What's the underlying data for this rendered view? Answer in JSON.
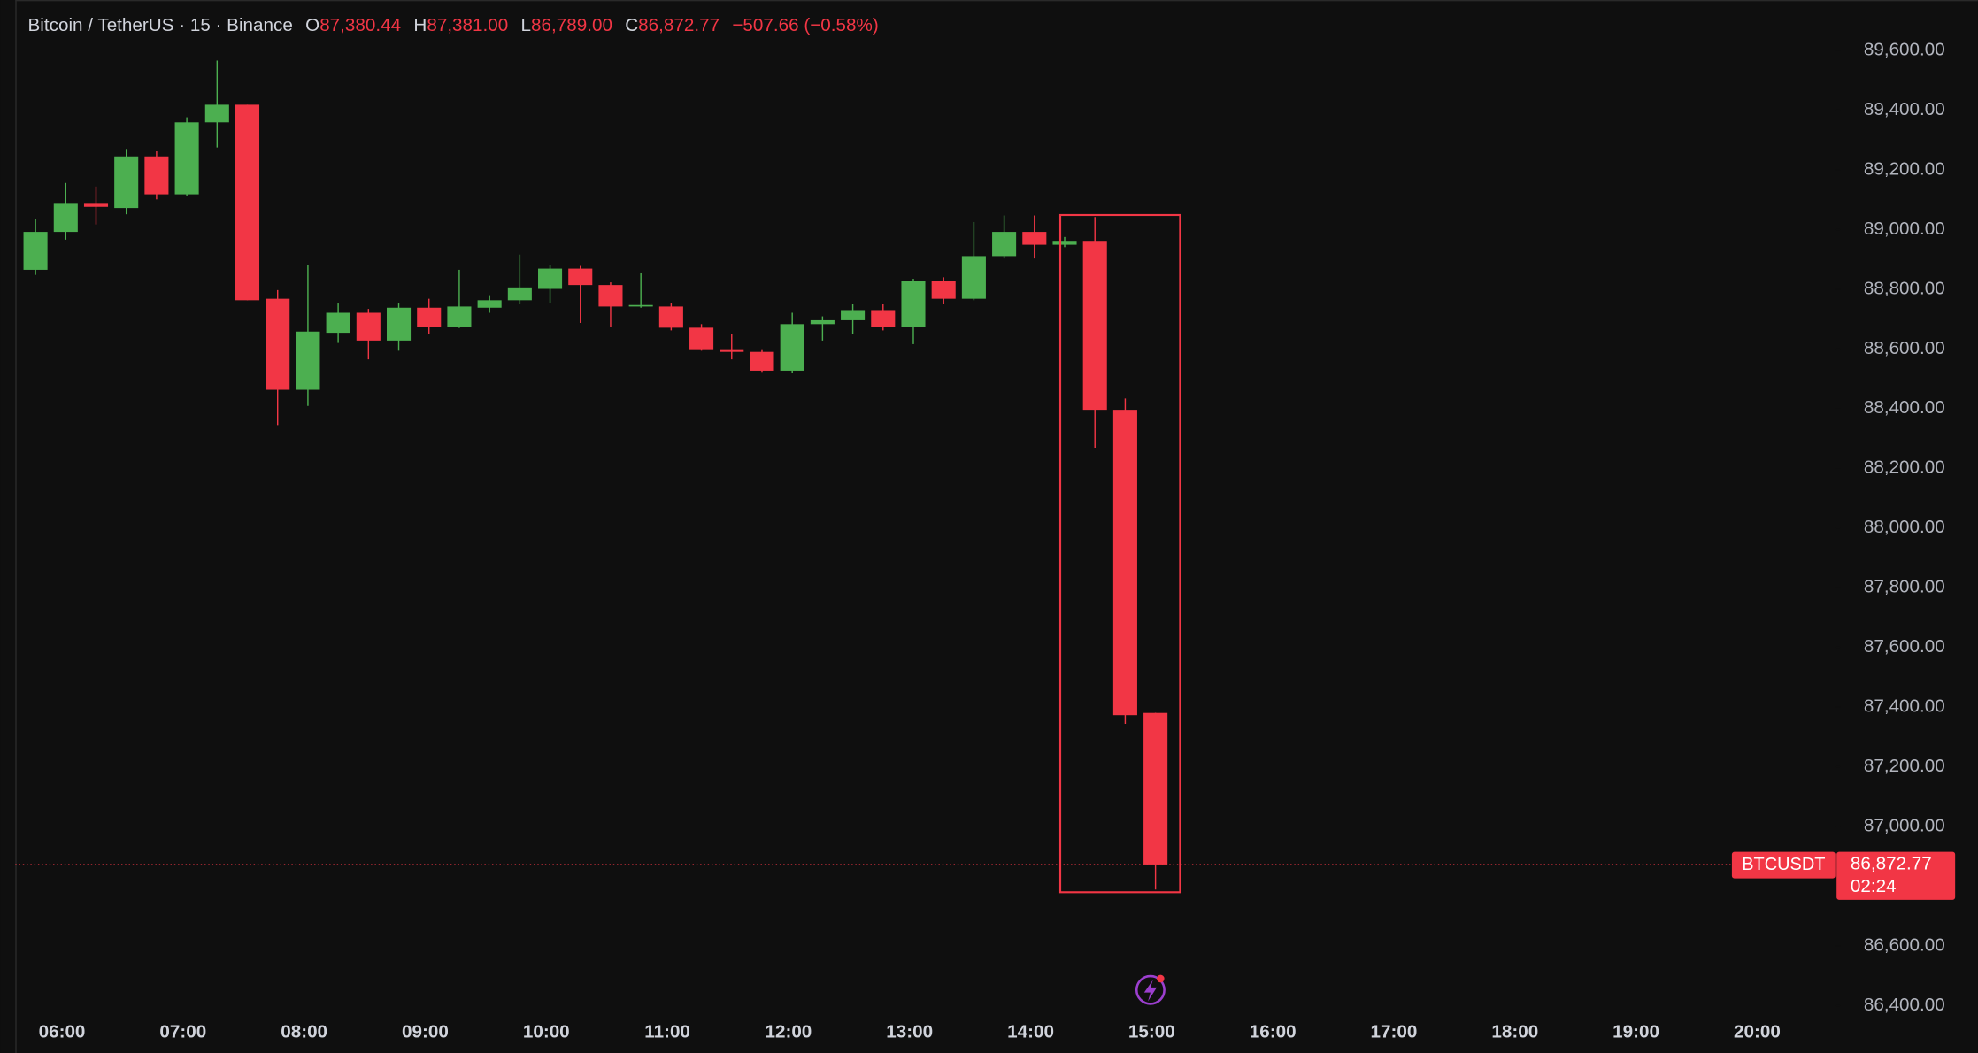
{
  "chart_data": {
    "type": "candlestick",
    "header": {
      "instrument": "Bitcoin / TetherUS · 15 · Binance",
      "o": "O",
      "open": "87,380.44",
      "h": "H",
      "high": "87,381.00",
      "l": "L",
      "low": "86,789.00",
      "c": "C",
      "close": "86,872.77",
      "change": "−507.66 (−0.58%)"
    },
    "categories": [
      null,
      "06:00",
      null,
      null,
      null,
      "07:00",
      null,
      null,
      null,
      "08:00",
      null,
      null,
      null,
      "09:00",
      null,
      null,
      null,
      "10:00",
      null,
      null,
      null,
      "11:00",
      null,
      null,
      null,
      "12:00",
      null,
      null,
      null,
      "13:00",
      null,
      null,
      null,
      "14:00",
      null,
      null,
      null,
      "15:00",
      null,
      null,
      null,
      "16:00",
      null,
      null,
      null,
      "17:00",
      null,
      null,
      null,
      "18:00",
      null,
      null,
      null,
      "19:00",
      null,
      null,
      null,
      "20:00"
    ],
    "open": [
      88865,
      88992,
      89089,
      89072,
      89245,
      89118,
      89359,
      89418,
      88768,
      88463,
      88654,
      88721,
      88628,
      88738,
      88675,
      88738,
      88763,
      88801,
      88869,
      88814,
      88742,
      88742,
      88671,
      88599,
      88590,
      88527,
      88683,
      88696,
      88730,
      88675,
      88827,
      88768,
      88911,
      88992,
      88949,
      88962,
      88396,
      87380.44,
      null,
      null,
      null,
      null,
      null,
      null,
      null,
      null,
      null,
      null,
      null,
      null,
      null,
      null,
      null,
      null,
      null,
      null,
      null,
      null
    ],
    "high": [
      89034,
      89156,
      89144,
      89270,
      89262,
      89376,
      89566,
      89418,
      88797,
      88882,
      88755,
      88734,
      88755,
      88768,
      88865,
      88780,
      88916,
      88882,
      88878,
      88823,
      88856,
      88755,
      88683,
      88649,
      88599,
      88721,
      88709,
      88751,
      88751,
      88835,
      88840,
      89025,
      89047,
      89047,
      88975,
      89042,
      88434,
      87381,
      null,
      null,
      null,
      null,
      null,
      null,
      null,
      null,
      null,
      null,
      null,
      null,
      null,
      null,
      null,
      null,
      null,
      null,
      null,
      null
    ],
    "low": [
      88848,
      88966,
      89017,
      89051,
      89101,
      89114,
      89275,
      88763,
      88345,
      88409,
      88620,
      88565,
      88594,
      88649,
      88670,
      88721,
      88751,
      88755,
      88687,
      88675,
      88738,
      88662,
      88594,
      88565,
      88523,
      88518,
      88628,
      88649,
      88662,
      88616,
      88751,
      88763,
      88903,
      88903,
      88941,
      88269,
      87344,
      86789,
      null,
      null,
      null,
      null,
      null,
      null,
      null,
      null,
      null,
      null,
      null,
      null,
      null,
      null,
      null,
      null,
      null,
      null,
      null,
      null
    ],
    "close": [
      88992,
      89089,
      89076,
      89245,
      89118,
      89359,
      89418,
      88763,
      88463,
      88658,
      88721,
      88628,
      88738,
      88675,
      88742,
      88763,
      88806,
      88869,
      88814,
      88742,
      88747,
      88671,
      88599,
      88590,
      88527,
      88683,
      88696,
      88730,
      88675,
      88827,
      88768,
      88911,
      88992,
      88949,
      88962,
      88396,
      87373,
      86872.77,
      null,
      null,
      null,
      null,
      null,
      null,
      null,
      null,
      null,
      null,
      null,
      null,
      null,
      null,
      null,
      null,
      null,
      null,
      null,
      null
    ],
    "up_color": "#4caf50",
    "down_color": "#f23645",
    "ylim": [
      86389,
      89769
    ],
    "yticks": [
      {
        "value": 89600,
        "label": "89,600.00"
      },
      {
        "value": 89400,
        "label": "89,400.00"
      },
      {
        "value": 89200,
        "label": "89,200.00"
      },
      {
        "value": 89000,
        "label": "89,000.00"
      },
      {
        "value": 88800,
        "label": "88,800.00"
      },
      {
        "value": 88600,
        "label": "88,600.00"
      },
      {
        "value": 88400,
        "label": "88,400.00"
      },
      {
        "value": 88200,
        "label": "88,200.00"
      },
      {
        "value": 88000,
        "label": "88,000.00"
      },
      {
        "value": 87800,
        "label": "87,800.00"
      },
      {
        "value": 87600,
        "label": "87,600.00"
      },
      {
        "value": 87400,
        "label": "87,400.00"
      },
      {
        "value": 87200,
        "label": "87,200.00"
      },
      {
        "value": 87000,
        "label": "87,000.00"
      },
      {
        "value": 86600,
        "label": "86,600.00"
      },
      {
        "value": 86400,
        "label": "86,400.00"
      }
    ],
    "price_label": {
      "symbol": "BTCUSDT",
      "price": "86,872.77",
      "countdown": "02:24"
    }
  }
}
